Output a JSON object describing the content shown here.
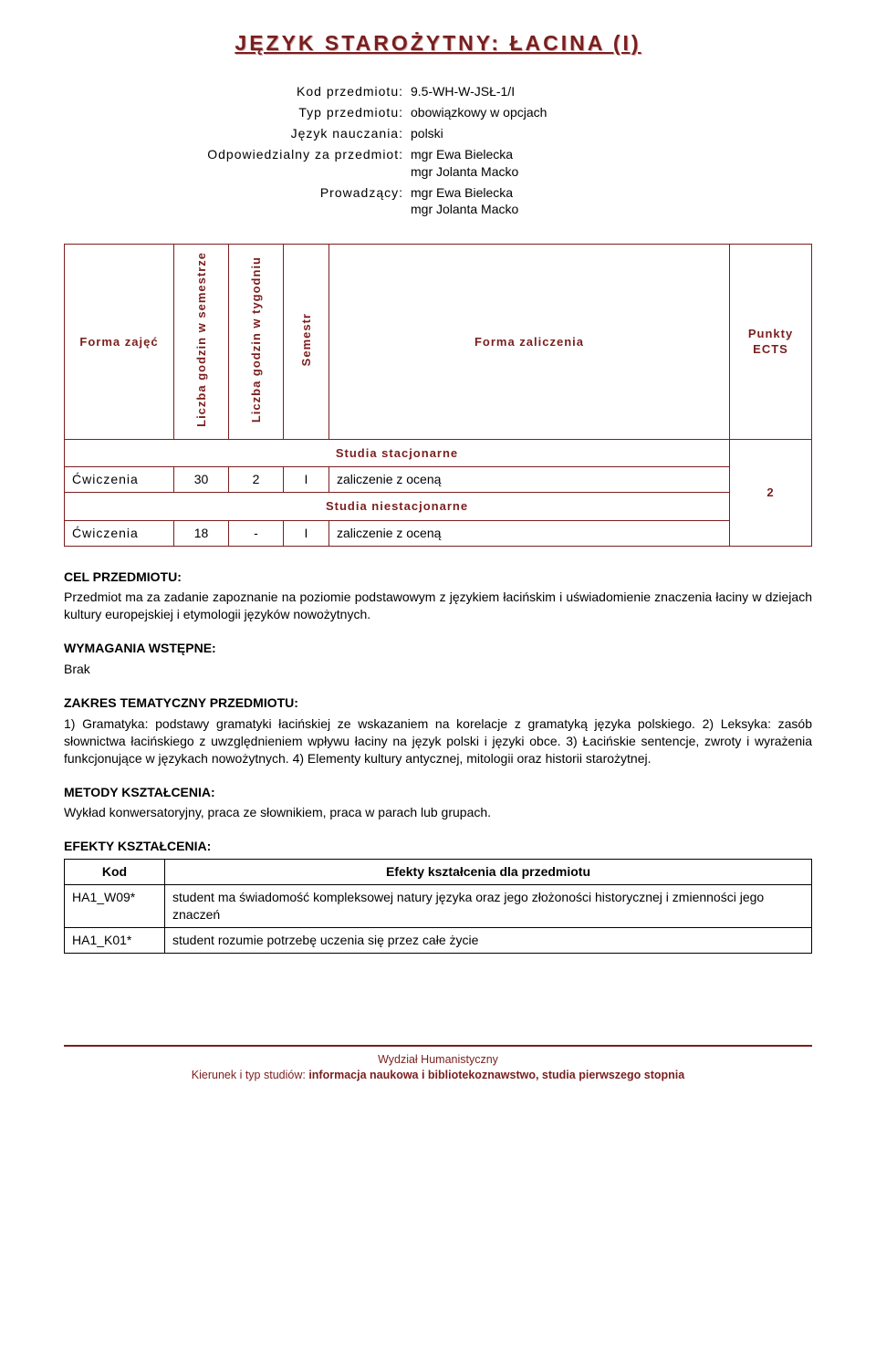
{
  "colors": {
    "accent": "#7a1e1e",
    "text": "#000000",
    "background": "#ffffff",
    "border_table": "#7a1e1e",
    "border_fx": "#000000"
  },
  "title": "JĘZYK STAROŻYTNY: ŁACINA (I)",
  "meta": {
    "code_label": "Kod przedmiotu:",
    "code_value": "9.5-WH-W-JSŁ-1/I",
    "type_label": "Typ przedmiotu:",
    "type_value": "obowiązkowy w opcjach",
    "lang_label": "Język nauczania:",
    "lang_value": "polski",
    "resp_label": "Odpowiedzialny za przedmiot:",
    "resp_value_1": "mgr Ewa Bielecka",
    "resp_value_2": "mgr Jolanta Macko",
    "teach_label": "Prowadzący:",
    "teach_value_1": "mgr Ewa Bielecka",
    "teach_value_2": "mgr Jolanta Macko"
  },
  "table": {
    "headers": {
      "form": "Forma zajęć",
      "hrs_sem": "Liczba godzin w semestrze",
      "hrs_wk": "Liczba godzin w tygodniu",
      "semester": "Semestr",
      "pass_form": "Forma zaliczenia",
      "ects": "Punkty ECTS"
    },
    "section_full": "Studia stacjonarne",
    "section_part": "Studia niestacjonarne",
    "rows_full": [
      {
        "form": "Ćwiczenia",
        "hrs_sem": "30",
        "hrs_wk": "2",
        "sem": "I",
        "pass": "zaliczenie z oceną"
      }
    ],
    "rows_part": [
      {
        "form": "Ćwiczenia",
        "hrs_sem": "18",
        "hrs_wk": "-",
        "sem": "I",
        "pass": "zaliczenie z oceną"
      }
    ],
    "ects": "2"
  },
  "sections": {
    "cel_head": "CEL PRZEDMIOTU:",
    "cel_body": "Przedmiot ma za zadanie zapoznanie na poziomie podstawowym z językiem łacińskim i uświadomienie znaczenia łaciny w dziejach kultury europejskiej i etymologii języków nowożytnych.",
    "wym_head": "WYMAGANIA WSTĘPNE:",
    "wym_body": "Brak",
    "zakres_head": "ZAKRES TEMATYCZNY PRZEDMIOTU:",
    "zakres_body": "1) Gramatyka: podstawy gramatyki łacińskiej ze wskazaniem na korelacje z gramatyką języka polskiego. 2) Leksyka: zasób słownictwa łacińskiego z uwzględnieniem wpływu łaciny na język polski i języki obce. 3) Łacińskie sentencje, zwroty i wyrażenia funkcjonujące w językach nowożytnych. 4) Elementy kultury antycznej, mitologii oraz historii starożytnej.",
    "metody_head": "METODY KSZTAŁCENIA:",
    "metody_body": "Wykład konwersatoryjny, praca ze słownikiem, praca w parach lub grupach.",
    "efekty_head": "EFEKTY KSZTAŁCENIA:"
  },
  "fx": {
    "col_code": "Kod",
    "col_desc": "Efekty kształcenia dla przedmiotu",
    "rows": [
      {
        "code": "HA1_W09*",
        "desc": "student ma świadomość kompleksowej natury języka oraz jego złożoności historycznej i zmienności jego znaczeń"
      },
      {
        "code": "HA1_K01*",
        "desc": "student rozumie potrzebę uczenia się przez całe życie"
      }
    ]
  },
  "footer": {
    "line1": "Wydział Humanistyczny",
    "line2_label": "Kierunek i typ studiów: ",
    "line2_value": "informacja naukowa i bibliotekoznawstwo, studia pierwszego stopnia"
  }
}
